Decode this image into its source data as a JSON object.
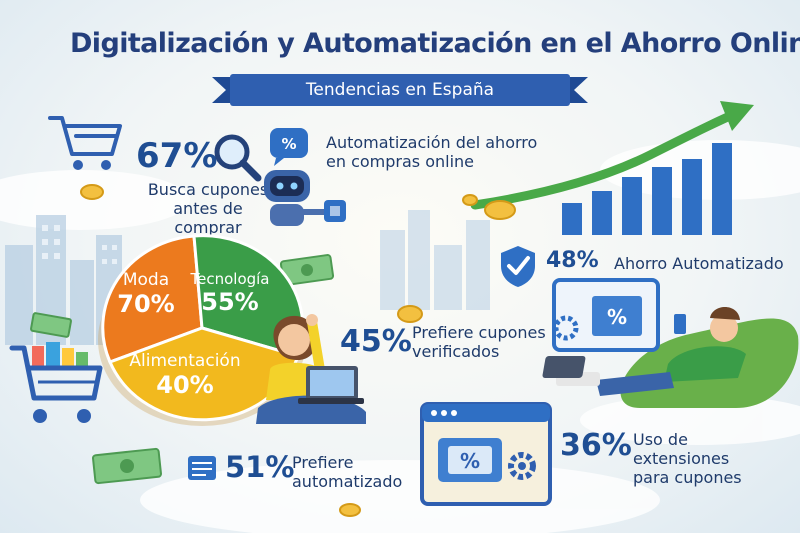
{
  "header": {
    "title": "Digitalización y Automatización en el Ahorro Online",
    "subtitle": "Tendencias en España"
  },
  "stats": {
    "cupones": {
      "value": "67%",
      "line1": "Busca cupones",
      "line2": "antes de comprar"
    },
    "automatizacion": {
      "line1": "Automatización del ahorro",
      "line2": "en compras online"
    },
    "ahorro": {
      "value": "48%",
      "label": "Ahorro Automatizado"
    },
    "verificados": {
      "value": "45%",
      "line1": "Prefiere cupones",
      "line2": "verificados"
    },
    "automatizado": {
      "value": "51%",
      "line1": "Prefiere",
      "line2": "automatizado"
    },
    "extensiones": {
      "value": "36%",
      "line1": "Uso de extensiones",
      "line2": "para cupones"
    }
  },
  "pie": {
    "slices": [
      {
        "name": "Moda",
        "value": "70%",
        "color": "#ec7a1e"
      },
      {
        "name": "Tecnología",
        "value": "55%",
        "color": "#3a9d48"
      },
      {
        "name": "Alimentación",
        "value": "40%",
        "color": "#f2b91e"
      }
    ]
  },
  "icons": {
    "percent_badge": "%",
    "tag_symbol": "%"
  },
  "colors": {
    "title_blue": "#243f7c",
    "banner_blue": "#2f5fb0",
    "trend_green": "#49a948",
    "bar_blue": "#2f6fc4"
  }
}
